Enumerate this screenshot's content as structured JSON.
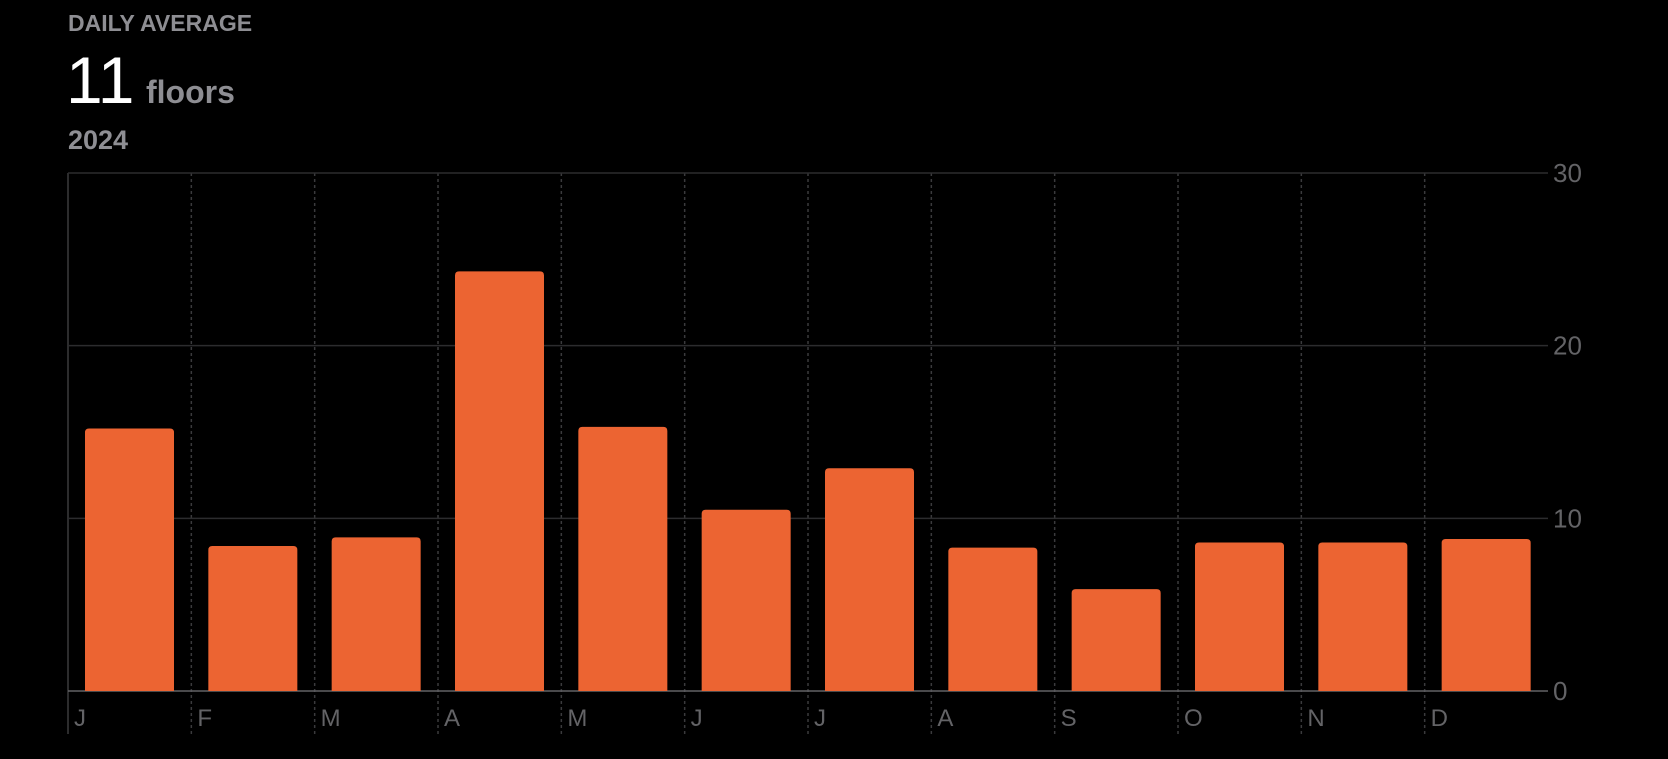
{
  "chart_data": {
    "type": "bar",
    "summary": {
      "label": "DAILY AVERAGE",
      "value": "11",
      "unit": "floors",
      "period": "2024"
    },
    "categories": [
      "J",
      "F",
      "M",
      "A",
      "M",
      "J",
      "J",
      "A",
      "S",
      "O",
      "N",
      "D"
    ],
    "values": [
      15.2,
      8.4,
      8.9,
      24.3,
      15.3,
      10.5,
      12.9,
      8.3,
      5.9,
      8.6,
      8.6,
      8.8
    ],
    "color": "#ec6432",
    "ylim": [
      0,
      30
    ],
    "yticks": [
      0,
      10,
      20,
      30
    ],
    "grid": true
  }
}
